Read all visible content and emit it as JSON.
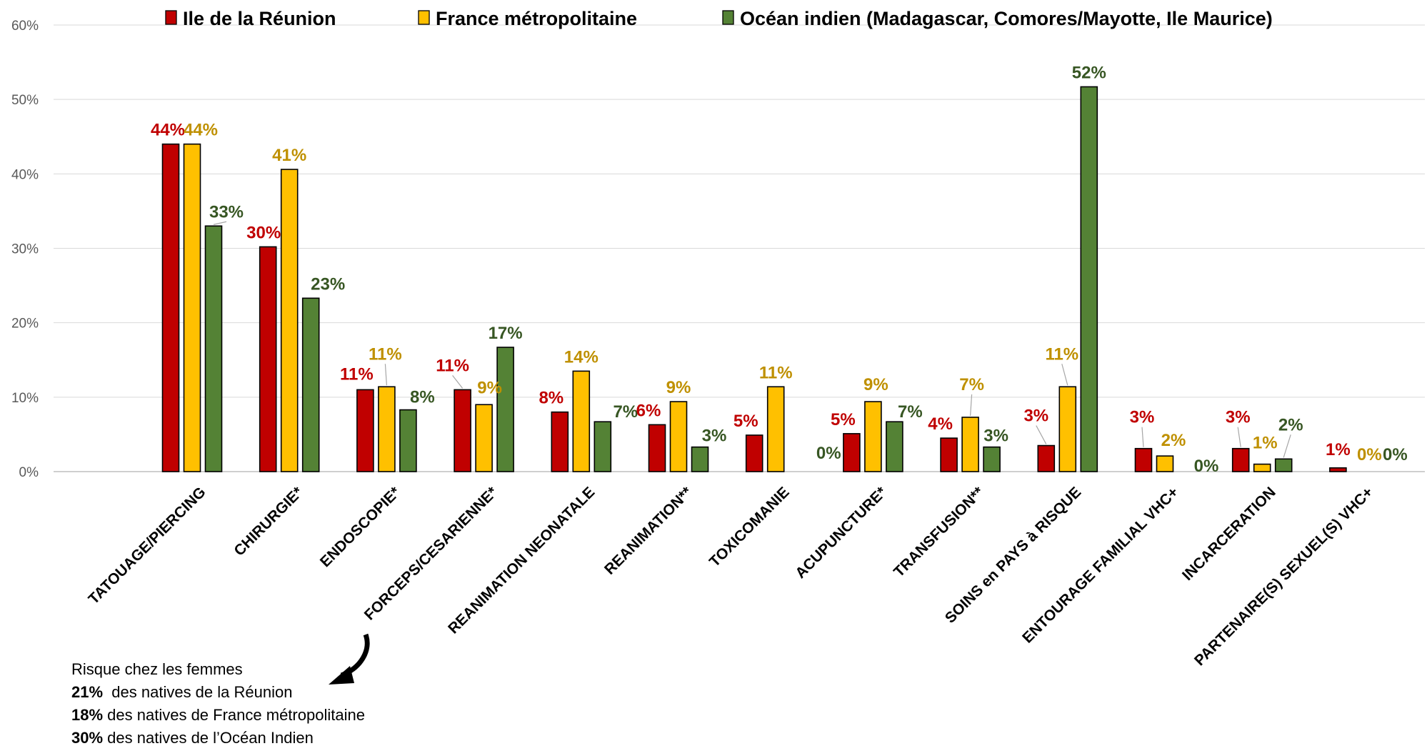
{
  "chart_data": {
    "type": "bar",
    "ylim": [
      0,
      60
    ],
    "yticks": [
      "0%",
      "10%",
      "20%",
      "30%",
      "40%",
      "50%",
      "60%"
    ],
    "grid": true,
    "legend_position": "top",
    "categories": [
      "TATOUAGE/PIERCING",
      "CHIRURGIE*",
      "ENDOSCOPIE*",
      "FORCEPS/CESARIENNE*",
      "REANIMATION NEONATALE",
      "REANIMATION**",
      "TOXICOMANIE",
      "ACUPUNCTURE*",
      "TRANSFUSION**",
      "SOINS en PAYS à RISQUE",
      "ENTOURAGE FAMILIAL VHC+",
      "INCARCERATION",
      "PARTENAIRE(S) SEXUEL(S) VHC+"
    ],
    "series": [
      {
        "name": "Ile de la Réunion",
        "color": "#c00000",
        "label_color": "#c00000",
        "values": [
          44,
          30.2,
          11,
          11,
          8,
          6.3,
          4.9,
          5.1,
          4.5,
          3.5,
          3.1,
          3.1,
          0.5
        ],
        "labels": [
          "44%",
          "30%",
          "11%",
          "11%",
          "8%",
          "6%",
          "5%",
          "5%",
          "4%",
          "3%",
          "3%",
          "3%",
          "1%"
        ]
      },
      {
        "name": "France métropolitaine",
        "color": "#ffc000",
        "label_color": "#bf9000",
        "values": [
          44,
          40.6,
          11.4,
          9,
          13.5,
          9.4,
          11.4,
          9.4,
          7.3,
          11.4,
          2.1,
          1.0,
          0
        ],
        "labels": [
          "44%",
          "41%",
          "11%",
          "9%",
          "14%",
          "9%",
          "11%",
          "9%",
          "7%",
          "11%",
          "2%",
          "1%",
          "0%"
        ]
      },
      {
        "name": "Océan indien  (Madagascar, Comores/Mayotte, Ile Maurice)",
        "color": "#548235",
        "label_color": "#375623",
        "values": [
          33,
          23.3,
          8.3,
          16.7,
          6.7,
          3.3,
          0,
          6.7,
          3.3,
          51.7,
          0,
          1.7,
          0
        ],
        "labels": [
          "33%",
          "23%",
          "8%",
          "17%",
          "7%",
          "3%",
          "0%",
          "7%",
          "3%",
          "52%",
          "0%",
          "2%",
          "0%"
        ]
      }
    ]
  },
  "note": {
    "title": "Risque chez les femmes",
    "lines": [
      {
        "value": "21%",
        "text": "des natives de la Réunion"
      },
      {
        "value": "18%",
        "text": "des natives de France métropolitaine"
      },
      {
        "value": "30%",
        "text": "des natives de l’Océan Indien"
      }
    ]
  }
}
